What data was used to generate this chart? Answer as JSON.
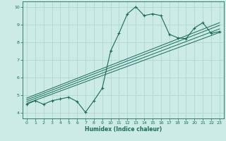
{
  "title": "",
  "xlabel": "Humidex (Indice chaleur)",
  "bg_color": "#cceae6",
  "grid_color": "#aad4d0",
  "line_color": "#1a6b5a",
  "xlim": [
    -0.5,
    23.5
  ],
  "ylim": [
    3.7,
    10.3
  ],
  "xticks": [
    0,
    1,
    2,
    3,
    4,
    5,
    6,
    7,
    8,
    9,
    10,
    11,
    12,
    13,
    14,
    15,
    16,
    17,
    18,
    19,
    20,
    21,
    22,
    23
  ],
  "yticks": [
    4,
    5,
    6,
    7,
    8,
    9,
    10
  ],
  "curve_x": [
    0,
    1,
    2,
    3,
    4,
    5,
    6,
    7,
    8,
    9,
    10,
    11,
    12,
    13,
    14,
    15,
    16,
    17,
    18,
    19,
    20,
    21,
    22,
    23
  ],
  "curve_y": [
    4.5,
    4.7,
    4.5,
    4.7,
    4.8,
    4.9,
    4.65,
    4.05,
    4.7,
    5.4,
    7.5,
    8.5,
    9.6,
    10.0,
    9.5,
    9.6,
    9.5,
    8.45,
    8.25,
    8.2,
    8.8,
    9.1,
    8.5,
    8.6
  ],
  "line1_x": [
    0,
    23
  ],
  "line1_y": [
    4.55,
    8.55
  ],
  "line2_x": [
    0,
    23
  ],
  "line2_y": [
    4.65,
    8.75
  ],
  "line3_x": [
    0,
    23
  ],
  "line3_y": [
    4.75,
    8.95
  ],
  "line4_x": [
    0,
    23
  ],
  "line4_y": [
    4.85,
    9.1
  ]
}
